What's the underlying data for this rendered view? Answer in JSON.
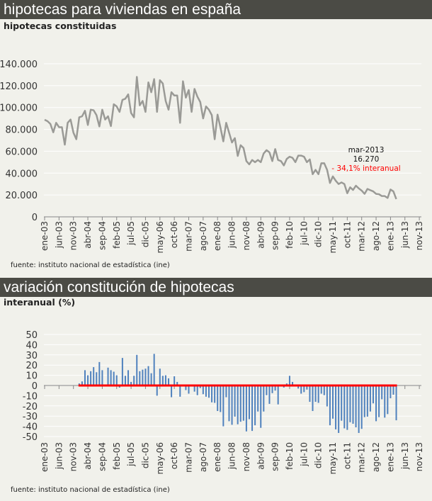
{
  "header1": {
    "title": "hipotecas para viviendas en españa"
  },
  "chart1_subtitle": "hipotecas constituidas",
  "source1": "fuente: instituto nacional de estadística (ine)",
  "header2": {
    "title": "variación constitución de hipotecas"
  },
  "chart2_subtitle": "interanual (%)",
  "source2": "fuente: instituto nacional de estadística (ine)",
  "annotation": {
    "date": "mar-2013",
    "value": "16.270",
    "change": "- 34,1% interanual",
    "change_color": "#ff0000"
  },
  "colors": {
    "header_bg": "#4b4b45",
    "line": "#9a9a96",
    "bars": "#4f81bd",
    "zero_line": "#ff0000"
  },
  "chart_data": [
    {
      "type": "line",
      "title": "hipotecas constituidas",
      "x_start": "ene-03",
      "x_end": "mar-13",
      "frequency": "monthly",
      "xtick_labels": [
        "ene-03",
        "jun-03",
        "nov-03",
        "abr-04",
        "sep-04",
        "feb-05",
        "jul-05",
        "dic-05",
        "may-06",
        "oct-06",
        "mar-07",
        "ago-07",
        "ene-08",
        "jun-08",
        "nov-08",
        "abr-09",
        "sep-09",
        "feb-10",
        "jul-10",
        "dic-10",
        "may-11",
        "oct-11",
        "mar-12",
        "ago-12",
        "ene-13",
        "jun-13",
        "nov-13"
      ],
      "ytick_labels": [
        "0",
        "20.000",
        "40.000",
        "60.000",
        "80.000",
        "100.000",
        "120.000",
        "140.000"
      ],
      "ylim": [
        0,
        140000
      ],
      "grid": true,
      "values": [
        88800,
        87500,
        85000,
        77300,
        86000,
        82000,
        82000,
        66000,
        86000,
        89000,
        77000,
        71000,
        91000,
        92000,
        97000,
        84000,
        98000,
        97500,
        93000,
        82700,
        98000,
        89000,
        92000,
        83000,
        103000,
        101000,
        96000,
        107000,
        108000,
        112000,
        95000,
        91000,
        128000,
        102000,
        106000,
        96000,
        123000,
        114000,
        126000,
        96000,
        125000,
        122000,
        106000,
        98000,
        114000,
        111000,
        111000,
        86000,
        124000,
        109000,
        116000,
        96000,
        117000,
        110000,
        105000,
        90000,
        101000,
        98000,
        93000,
        71000,
        93500,
        81700,
        69000,
        86000,
        77000,
        68000,
        72000,
        55700,
        65500,
        63000,
        51000,
        48000,
        52000,
        50000,
        52000,
        50000,
        58000,
        61000,
        59000,
        51000,
        62000,
        52000,
        51000,
        47000,
        53000,
        55000,
        54000,
        50000,
        56000,
        56000,
        55000,
        50000,
        52500,
        39000,
        43000,
        39000,
        49000,
        49000,
        43000,
        31000,
        37000,
        33000,
        30000,
        31500,
        30000,
        21600,
        27000,
        24600,
        28500,
        26000,
        24000,
        21000,
        25500,
        24400,
        23300,
        21000,
        20700,
        19000,
        19000,
        17300,
        25000,
        23300,
        16270
      ]
    },
    {
      "type": "bar",
      "title": "interanual (%)",
      "x_start": "ene-04",
      "x_end": "mar-13",
      "frequency": "monthly",
      "xtick_labels": [
        "ene-03",
        "jun-03",
        "nov-03",
        "abr-04",
        "sep-04",
        "feb-05",
        "jul-05",
        "dic-05",
        "may-06",
        "oct-06",
        "mar-07",
        "ago-07",
        "ene-08",
        "jun-08",
        "nov-08",
        "abr-09",
        "sep-09",
        "feb-10",
        "jul-10",
        "dic-10",
        "may-11",
        "oct-11",
        "mar-12",
        "ago-12",
        "ene-13",
        "jun-13",
        "nov-13"
      ],
      "ytick_labels": [
        "-50",
        "-40",
        "-30",
        "-20",
        "-10",
        "0",
        "10",
        "20",
        "30",
        "40",
        "50"
      ],
      "ylim": [
        -50,
        50
      ],
      "grid": true,
      "values": [
        2,
        4,
        15,
        10,
        14,
        18,
        13,
        23,
        15,
        -1,
        17.5,
        15,
        13.5,
        10,
        -2,
        27,
        9.5,
        15,
        3.5,
        9.5,
        30,
        14,
        15.5,
        16.5,
        19,
        12,
        31,
        -10,
        16.5,
        9.5,
        10,
        7,
        -11.5,
        9,
        3.5,
        -11,
        0,
        -4.5,
        -8,
        0,
        -6,
        -9.5,
        -2.5,
        -8.5,
        -11,
        -12,
        -16.5,
        -17,
        -25,
        -26,
        -40,
        -11.5,
        -35,
        -38.5,
        -30.5,
        -38,
        -35.5,
        -34.5,
        -45,
        -33,
        -44.5,
        -39,
        -25.5,
        -41.5,
        -25.5,
        -9.5,
        -18,
        -7.5,
        -5,
        -18.5,
        0,
        -2,
        2,
        9.5,
        3.5,
        0,
        -3,
        -8,
        -6.5,
        -4,
        -16,
        -25,
        -16,
        -17,
        -8,
        -9.5,
        -20.5,
        -39,
        -32.5,
        -43,
        -46.5,
        -34.5,
        -42,
        -43.5,
        -36,
        -37.5,
        -41,
        -46.5,
        -42.5,
        -31,
        -30.5,
        -25.5,
        -17.5,
        -35,
        -31,
        -13.5,
        -31.5,
        -28,
        -12.5,
        -9,
        -34.1
      ]
    }
  ]
}
